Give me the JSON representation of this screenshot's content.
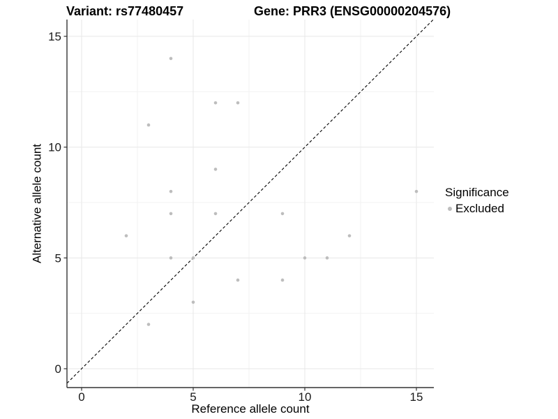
{
  "chart_data": {
    "type": "scatter",
    "title_left": "Variant: rs77480457",
    "title_right": "Gene: PRR3 (ENSG00000204576)",
    "xlabel": "Reference allele count",
    "ylabel": "Alternative allele count",
    "x_ticks": [
      0,
      5,
      10,
      15
    ],
    "y_ticks": [
      0,
      5,
      10,
      15
    ],
    "x_minor": [
      2.5,
      7.5,
      12.5
    ],
    "y_minor": [
      2.5,
      7.5,
      12.5
    ],
    "xlim": [
      -0.65,
      15.8
    ],
    "ylim": [
      -0.85,
      15.75
    ],
    "grid": true,
    "identity_line": {
      "style": "dashed",
      "equation": "y = x",
      "color": "#000000"
    },
    "series": [
      {
        "name": "Excluded",
        "color": "#bdbdbd",
        "points": [
          [
            2,
            6
          ],
          [
            3,
            2
          ],
          [
            3,
            11
          ],
          [
            4,
            5
          ],
          [
            4,
            7
          ],
          [
            4,
            8
          ],
          [
            4,
            14
          ],
          [
            5,
            3
          ],
          [
            5,
            5
          ],
          [
            6,
            7
          ],
          [
            6,
            9
          ],
          [
            6,
            12
          ],
          [
            7,
            4
          ],
          [
            7,
            12
          ],
          [
            9,
            4
          ],
          [
            9,
            7
          ],
          [
            10,
            5
          ],
          [
            11,
            5
          ],
          [
            12,
            6
          ],
          [
            15,
            8
          ]
        ]
      }
    ],
    "legend": {
      "title": "Significance",
      "position": "right",
      "items": [
        {
          "label": "Excluded",
          "color": "#bdbdbd"
        }
      ]
    },
    "colors": {
      "point": "#bdbdbd",
      "grid_major": "#e7e7e7",
      "grid_minor": "#f2f2f2",
      "axis": "#333333",
      "tick_label": "#1a1a1a",
      "identity_line": "#000000"
    }
  }
}
